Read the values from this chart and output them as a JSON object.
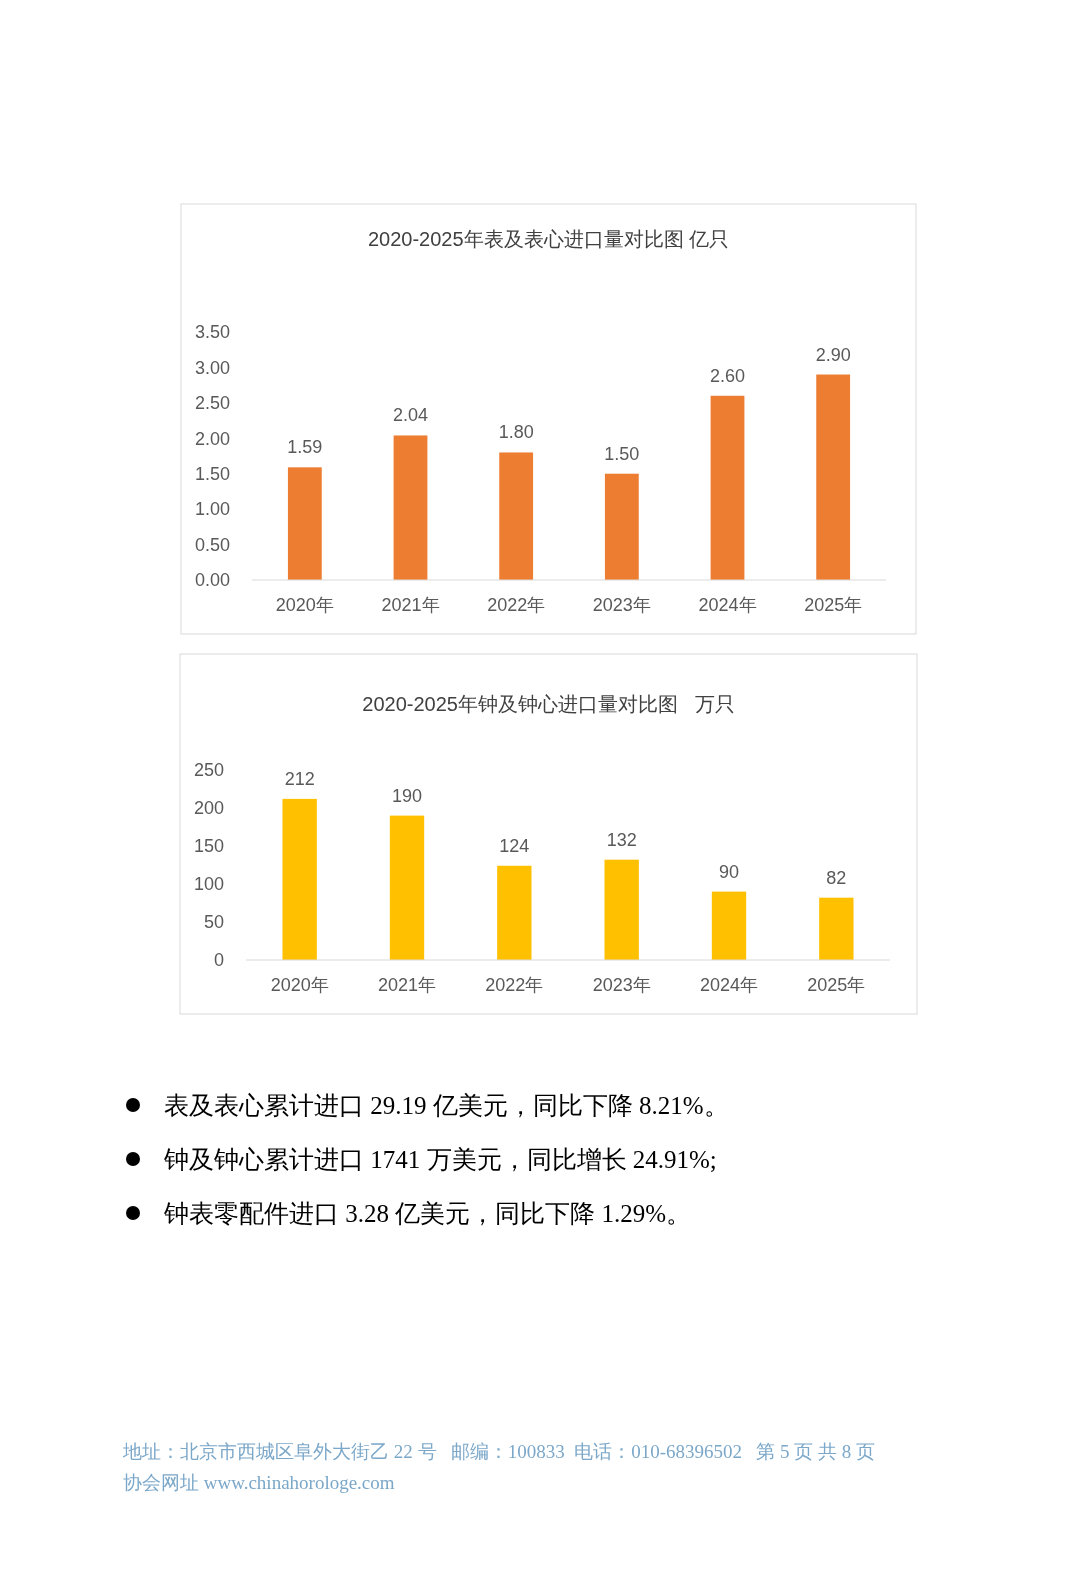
{
  "chart_data": [
    {
      "type": "bar",
      "title": "2020-2025年表及表心进口量对比图 亿只",
      "categories": [
        "2020年",
        "2021年",
        "2022年",
        "2023年",
        "2024年",
        "2025年"
      ],
      "values": [
        1.59,
        2.04,
        1.8,
        1.5,
        2.6,
        2.9
      ],
      "value_labels": [
        "1.59",
        "2.04",
        "1.80",
        "1.50",
        "2.60",
        "2.90"
      ],
      "color": "#ed7d31",
      "ylim": [
        0,
        3.5
      ],
      "yticks": [
        {
          "value": 0,
          "label": "0.00"
        },
        {
          "value": 0.5,
          "label": "0.50"
        },
        {
          "value": 1,
          "label": "1.00"
        },
        {
          "value": 1.5,
          "label": "1.50"
        },
        {
          "value": 2,
          "label": "2.00"
        },
        {
          "value": 2.5,
          "label": "2.50"
        },
        {
          "value": 3,
          "label": "3.00"
        },
        {
          "value": 3.5,
          "label": "3.50"
        }
      ],
      "grid": false
    },
    {
      "type": "bar",
      "title": "2020-2025年钟及钟心进口量对比图   万只",
      "categories": [
        "2020年",
        "2021年",
        "2022年",
        "2023年",
        "2024年",
        "2025年"
      ],
      "values": [
        212,
        190,
        124,
        132,
        90,
        82
      ],
      "data_labels": true,
      "color": "#ffc000",
      "ylim": [
        0,
        250
      ],
      "yticks": [
        0,
        50,
        100,
        150,
        200,
        250
      ],
      "grid": false,
      "annotations": [
        "表及表心累计进口 29.19 亿美元，同比下降 8.21%。",
        "钟及钟心累计进口 1741 万美元，同比增长 24.91%;",
        "钟表零配件进口 3.28 亿美元，同比下降 1.29%。",
        "地址：北京市西城区阜外大街乙 22 号   邮编：100833  电话：010-68396502   第 5 页 共 8 页",
        "协会网址 www.chinahorologe.com"
      ]
    }
  ]
}
